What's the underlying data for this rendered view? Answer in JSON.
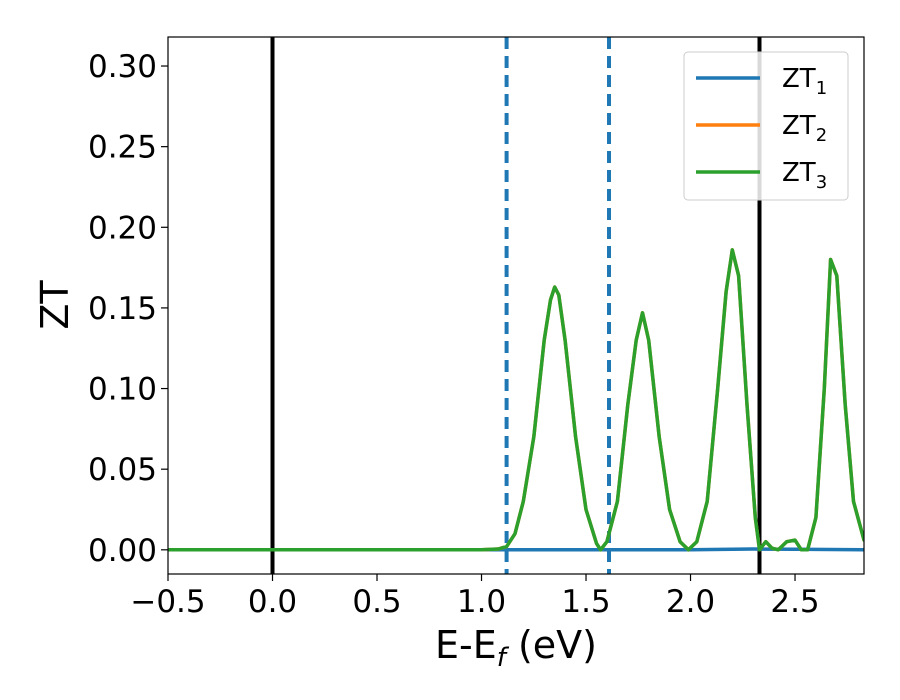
{
  "chart_data": {
    "type": "line",
    "xlabel": {
      "main": "E-E",
      "sub": "f",
      "unit": " (eV)"
    },
    "ylabel": "ZT",
    "xlim": [
      -0.5,
      2.83
    ],
    "ylim": [
      -0.015,
      0.318
    ],
    "x_ticks": [
      {
        "value": -0.5,
        "label": "−0.5"
      },
      {
        "value": 0.0,
        "label": "0.0"
      },
      {
        "value": 0.5,
        "label": "0.5"
      },
      {
        "value": 1.0,
        "label": "1.0"
      },
      {
        "value": 1.5,
        "label": "1.5"
      },
      {
        "value": 2.0,
        "label": "2.0"
      },
      {
        "value": 2.5,
        "label": "2.5"
      }
    ],
    "y_ticks": [
      {
        "value": 0.0,
        "label": "0.00"
      },
      {
        "value": 0.05,
        "label": "0.05"
      },
      {
        "value": 0.1,
        "label": "0.10"
      },
      {
        "value": 0.15,
        "label": "0.15"
      },
      {
        "value": 0.2,
        "label": "0.20"
      },
      {
        "value": 0.25,
        "label": "0.25"
      },
      {
        "value": 0.3,
        "label": "0.30"
      }
    ],
    "grid": false,
    "legend": {
      "placement": "top-right"
    },
    "series": [
      {
        "name": "ZT",
        "sub": "1",
        "color": "#1f77b4",
        "x": [
          -0.5,
          0.0,
          1.0,
          2.0,
          2.3,
          2.5,
          2.83
        ],
        "y": [
          0.0,
          0.0,
          0.0,
          0.0,
          0.0005,
          0.0003,
          0.0
        ]
      },
      {
        "name": "ZT",
        "sub": "2",
        "color": "#ff7f0e",
        "x": [
          -0.5,
          0.0,
          0.5,
          1.0,
          1.08,
          1.12,
          1.16,
          1.2,
          1.25,
          1.3,
          1.33,
          1.35,
          1.37,
          1.4,
          1.45,
          1.5,
          1.55,
          1.57,
          1.6,
          1.65,
          1.7,
          1.74,
          1.77,
          1.8,
          1.85,
          1.9,
          1.95,
          1.99,
          2.03,
          2.08,
          2.13,
          2.17,
          2.2,
          2.23,
          2.27,
          2.31,
          2.33,
          2.36,
          2.39,
          2.42,
          2.46,
          2.5,
          2.53,
          2.56,
          2.6,
          2.64,
          2.67,
          2.7,
          2.74,
          2.78,
          2.83
        ],
        "y": [
          0.0,
          0.0,
          0.0,
          0.0,
          0.0005,
          0.002,
          0.01,
          0.03,
          0.07,
          0.13,
          0.155,
          0.163,
          0.158,
          0.13,
          0.07,
          0.025,
          0.004,
          0.0,
          0.005,
          0.03,
          0.09,
          0.13,
          0.147,
          0.13,
          0.07,
          0.025,
          0.005,
          0.0,
          0.005,
          0.03,
          0.1,
          0.16,
          0.186,
          0.17,
          0.09,
          0.02,
          0.0,
          0.005,
          0.001,
          0.0,
          0.005,
          0.006,
          0.0,
          0.0,
          0.02,
          0.1,
          0.18,
          0.17,
          0.09,
          0.03,
          0.006
        ]
      },
      {
        "name": "ZT",
        "sub": "3",
        "color": "#2ca02c",
        "x": [
          -0.5,
          0.0,
          0.5,
          1.0,
          1.08,
          1.12,
          1.16,
          1.2,
          1.25,
          1.3,
          1.33,
          1.35,
          1.37,
          1.4,
          1.45,
          1.5,
          1.55,
          1.57,
          1.6,
          1.65,
          1.7,
          1.74,
          1.77,
          1.8,
          1.85,
          1.9,
          1.95,
          1.99,
          2.03,
          2.08,
          2.13,
          2.17,
          2.2,
          2.23,
          2.27,
          2.31,
          2.33,
          2.36,
          2.39,
          2.42,
          2.46,
          2.5,
          2.53,
          2.56,
          2.6,
          2.64,
          2.67,
          2.7,
          2.74,
          2.78,
          2.83
        ],
        "y": [
          0.0,
          0.0,
          0.0,
          0.0,
          0.0005,
          0.002,
          0.01,
          0.03,
          0.07,
          0.13,
          0.155,
          0.163,
          0.158,
          0.13,
          0.07,
          0.025,
          0.004,
          0.0,
          0.005,
          0.03,
          0.09,
          0.13,
          0.147,
          0.13,
          0.07,
          0.025,
          0.005,
          0.0,
          0.005,
          0.03,
          0.1,
          0.16,
          0.186,
          0.17,
          0.09,
          0.02,
          0.0,
          0.005,
          0.001,
          0.0,
          0.005,
          0.006,
          0.0,
          0.0,
          0.02,
          0.1,
          0.18,
          0.17,
          0.09,
          0.03,
          0.006
        ]
      }
    ],
    "vertical_lines": [
      {
        "x": 0.0,
        "color": "#000000",
        "style": "solid"
      },
      {
        "x": 2.33,
        "color": "#000000",
        "style": "solid"
      },
      {
        "x": 1.12,
        "color": "#1f77b4",
        "style": "dashed"
      },
      {
        "x": 1.61,
        "color": "#1f77b4",
        "style": "dashed"
      }
    ]
  }
}
